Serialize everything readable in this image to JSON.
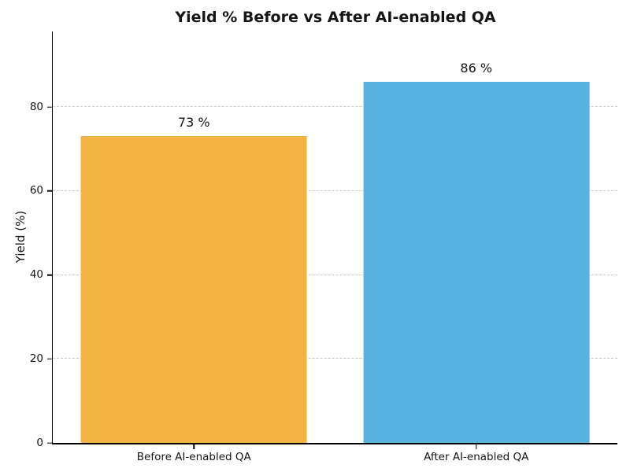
{
  "chart_data": {
    "type": "bar",
    "title": "Yield % Before vs After AI-enabled QA",
    "categories": [
      "Before AI-enabled QA",
      "After AI-enabled QA"
    ],
    "values": [
      73,
      86
    ],
    "value_labels": [
      "73 %",
      "86 %"
    ],
    "bar_colors": [
      "#F2B342",
      "#57B1E1"
    ],
    "xlabel": "",
    "ylabel": "Yield (%)",
    "ylim": [
      0,
      98
    ],
    "yticks": [
      0,
      20,
      40,
      60,
      80
    ],
    "grid": "horizontal dashed, below bars",
    "grid_color": "#c9c9c9",
    "axis_color": "#000000",
    "text_color": "#151515",
    "background_color": "#ffffff",
    "legend": "none",
    "bar_width_fraction": 0.8
  }
}
